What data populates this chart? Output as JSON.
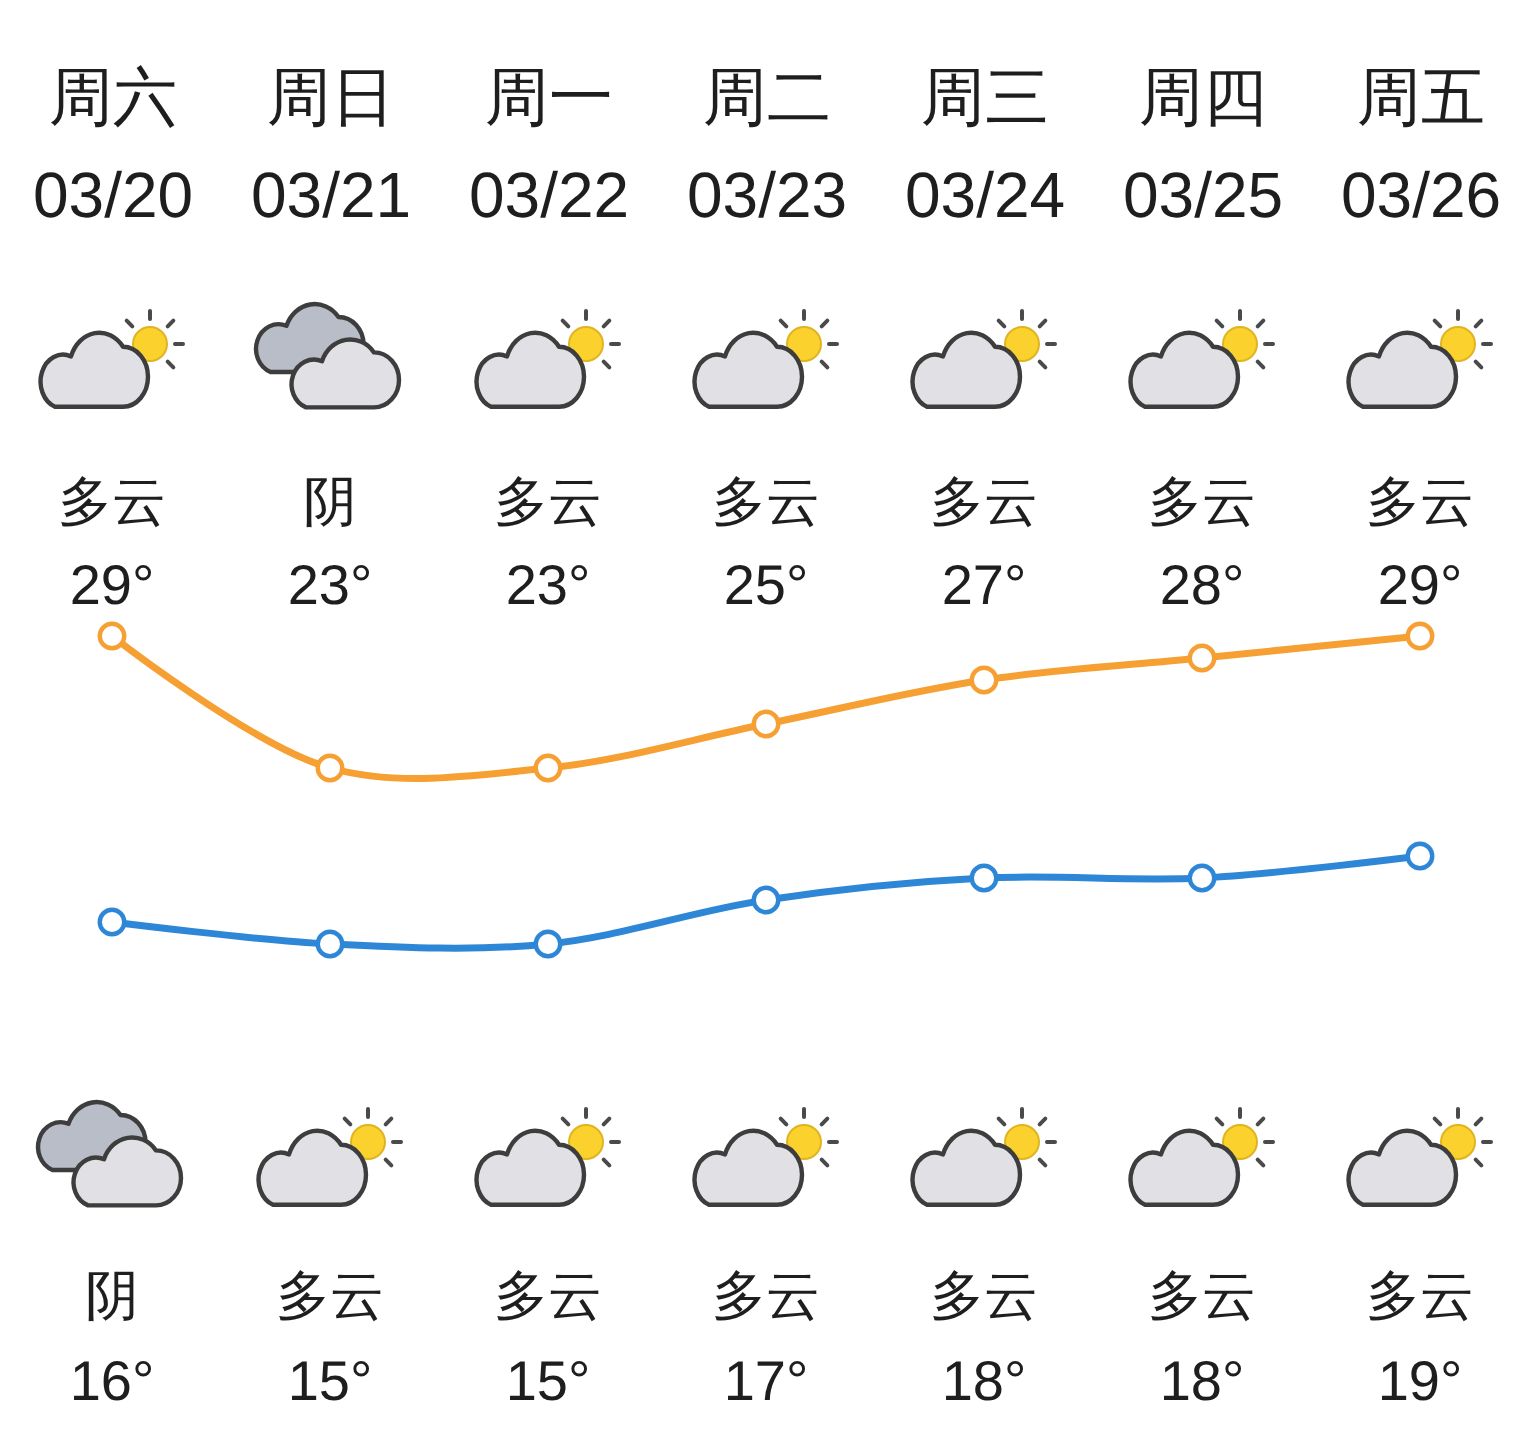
{
  "chart_data": {
    "type": "line",
    "categories": [
      "周六 03/20",
      "周日 03/21",
      "周一 03/22",
      "周二 03/23",
      "周三 03/24",
      "周四 03/25",
      "周五 03/26"
    ],
    "series": [
      {
        "color": "#f6a033",
        "values": [
          29,
          23,
          23,
          25,
          27,
          28,
          29
        ],
        "value_labels": [
          "29°",
          "23°",
          "23°",
          "25°",
          "27°",
          "28°",
          "29°"
        ]
      },
      {
        "color": "#2d87d6",
        "values": [
          16,
          15,
          15,
          17,
          18,
          18,
          19
        ],
        "value_labels": [
          "16°",
          "15°",
          "15°",
          "17°",
          "18°",
          "18°",
          "19°"
        ]
      }
    ],
    "annotations": [
      "多云",
      "阴",
      "多云",
      "多云",
      "多云",
      "多云",
      "多云",
      "阴",
      "多云",
      "多云",
      "多云",
      "多云",
      "多云",
      "多云"
    ],
    "marker": "circle",
    "line_style": "solid",
    "tick_labels": "x"
  }
}
